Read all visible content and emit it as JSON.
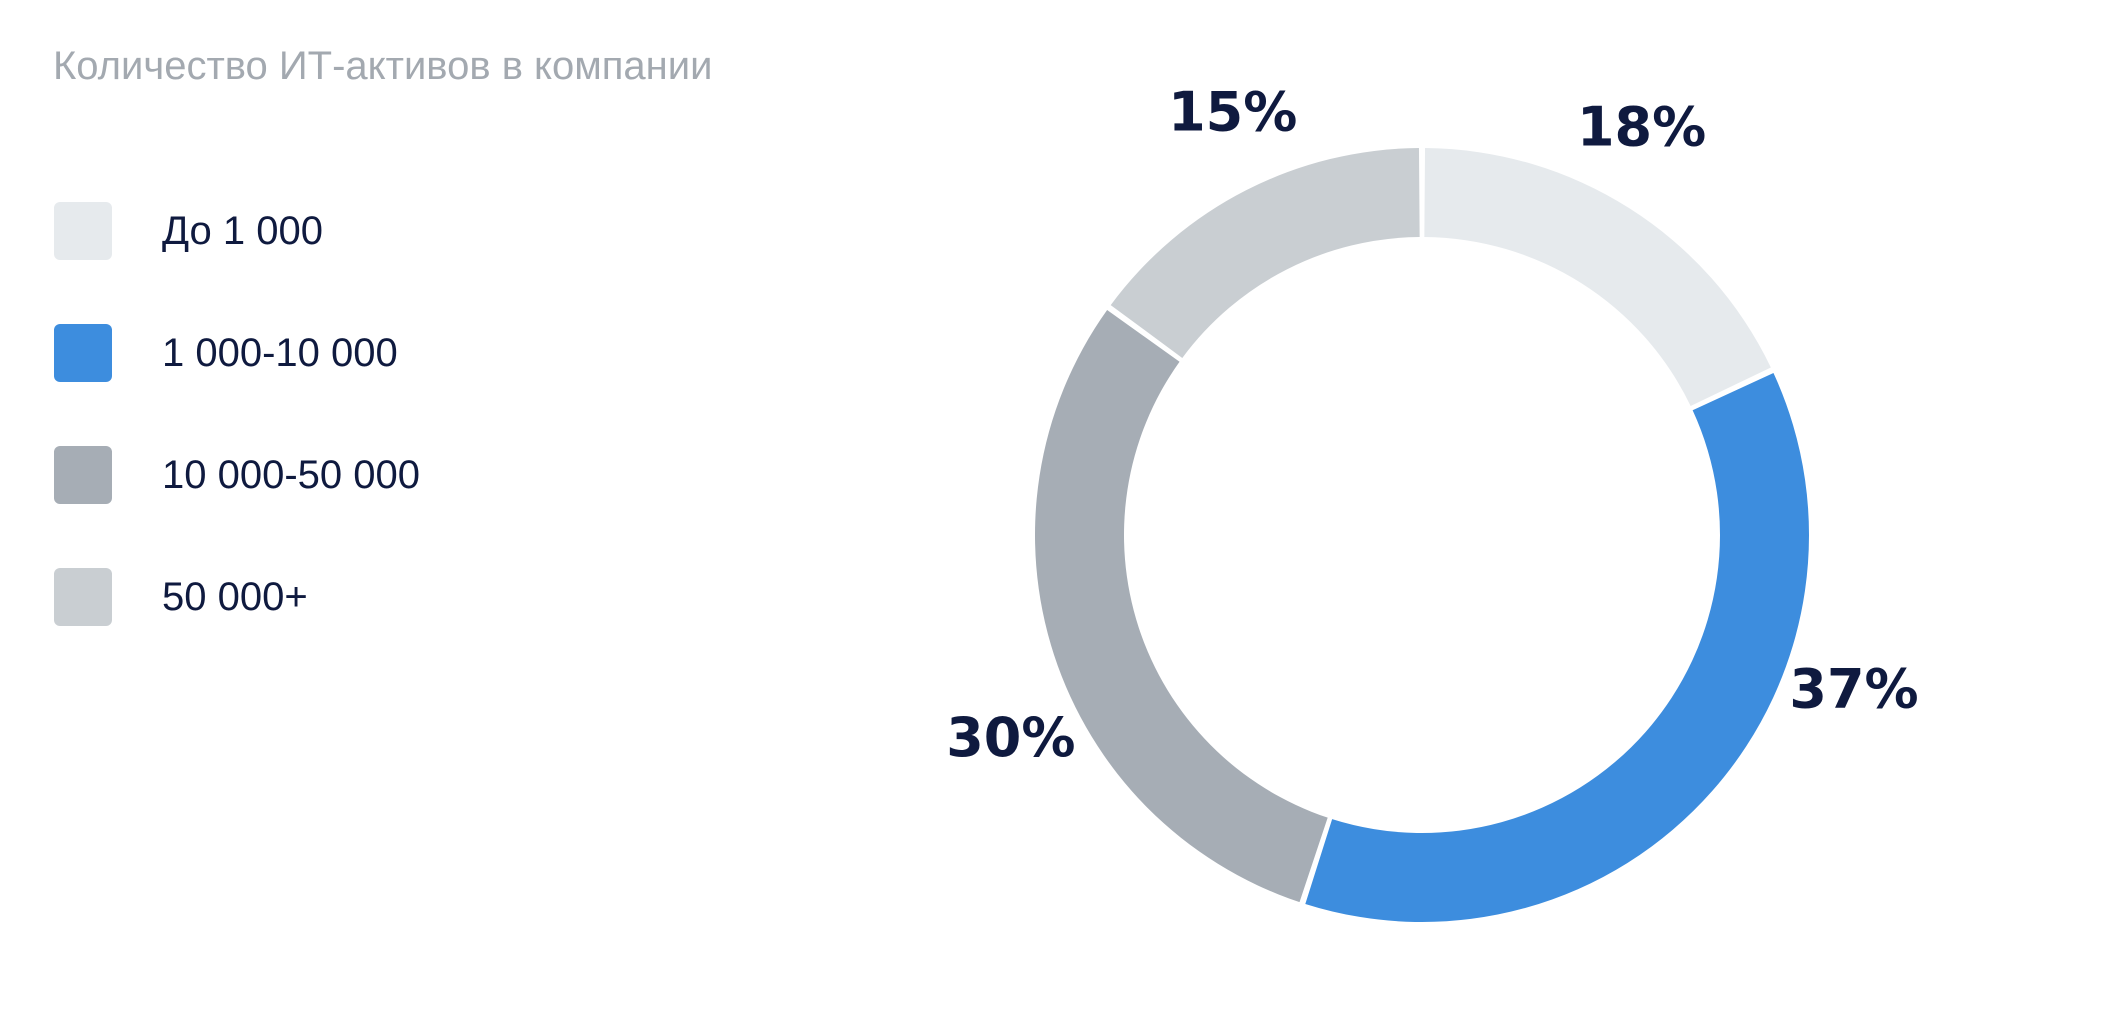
{
  "chart_data": {
    "type": "pie",
    "title": "Количество ИТ-активов в компании",
    "legend_position": "left",
    "categories": [
      "До 1 000",
      "1 000-10 000",
      "10 000-50 000",
      "50 000+"
    ],
    "values": [
      18,
      37,
      30,
      15
    ],
    "value_labels": [
      "18%",
      "37%",
      "30%",
      "15%"
    ],
    "colors": [
      "#e6eaed",
      "#3d8dde",
      "#a6adb5",
      "#c9ced2"
    ]
  }
}
